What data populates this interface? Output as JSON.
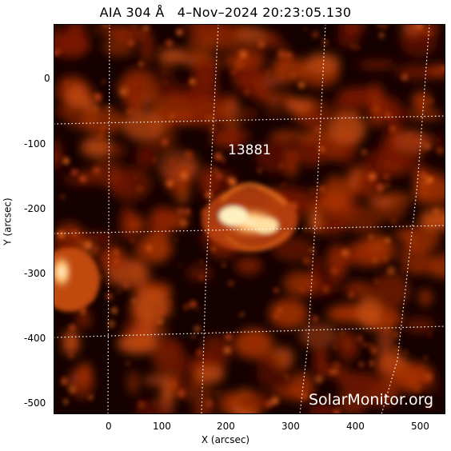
{
  "title": "AIA 304 Å   4–Nov–2024 20:23:05.130",
  "active_region": "13881",
  "watermark": "SolarMonitor.org",
  "xlabel": "X (arcsec)",
  "ylabel": "Y (arcsec)",
  "x_ticks": [
    "0",
    "100",
    "200",
    "300",
    "400",
    "500"
  ],
  "y_ticks": [
    "0",
    "-100",
    "-200",
    "-300",
    "-400",
    "-500"
  ],
  "colors": {
    "background": "#150200",
    "plasma_dim": "#7a1600",
    "plasma_mid": "#c24a10",
    "plasma_bright": "#ffe7b0"
  }
}
